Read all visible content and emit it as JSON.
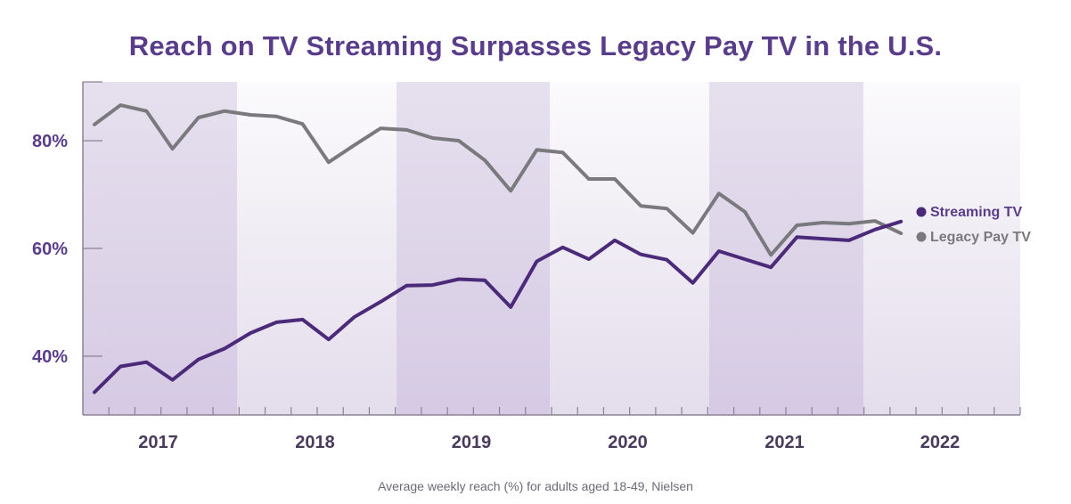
{
  "chart_data": {
    "type": "line",
    "title": "Reach on TV Streaming Surpasses Legacy Pay TV in the U.S.",
    "subtitle": "Average weekly reach (%) for adults aged 18-49, Nielsen",
    "xlabel": "",
    "ylabel": "",
    "ylim": [
      30,
      90
    ],
    "yticks": [
      40,
      60,
      80
    ],
    "ytick_labels": [
      "40%",
      "60%",
      "80%"
    ],
    "x_periods": 32,
    "x_year_labels": [
      "2017",
      "2018",
      "2019",
      "2020",
      "2021",
      "2022"
    ],
    "grid": false,
    "legend_position": "right-inline",
    "series": [
      {
        "name": "Streaming TV",
        "color": "#4b2a7a",
        "values": [
          33.3,
          38.1,
          38.9,
          35.6,
          39.4,
          41.4,
          44.3,
          46.3,
          46.8,
          43.1,
          47.3,
          50.1,
          53.1,
          53.2,
          54.3,
          54.1,
          49.1,
          57.6,
          60.2,
          58.0,
          61.5,
          58.9,
          57.9,
          53.6,
          59.5,
          58.0,
          56.5,
          62.1,
          61.8,
          61.5,
          63.5,
          65.0
        ]
      },
      {
        "name": "Legacy Pay TV",
        "color": "#7a7a7e",
        "values": [
          83.0,
          86.6,
          85.5,
          78.5,
          84.3,
          85.5,
          84.8,
          84.5,
          83.1,
          76.0,
          79.2,
          82.3,
          82.0,
          80.5,
          80.0,
          76.4,
          70.7,
          78.3,
          77.8,
          72.9,
          72.9,
          67.9,
          67.4,
          62.9,
          70.2,
          66.8,
          58.8,
          64.3,
          64.8,
          64.6,
          65.1,
          62.8
        ]
      }
    ]
  }
}
